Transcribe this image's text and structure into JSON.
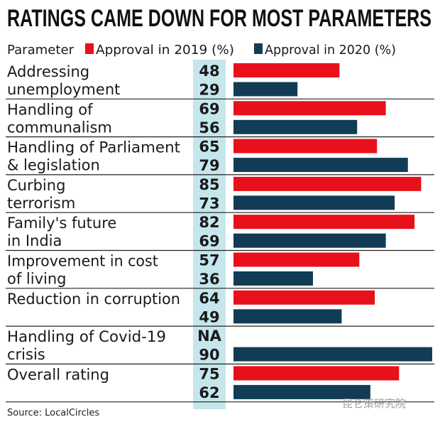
{
  "chart_data": {
    "type": "bar",
    "orientation": "horizontal",
    "title": "RATINGS CAME DOWN FOR MOST PARAMETERS",
    "category_header": "Parameter",
    "categories": [
      [
        "Addressing",
        "unemployment"
      ],
      [
        "Handling of",
        "communalism"
      ],
      [
        "Handling of Parliament",
        "& legislation"
      ],
      [
        "Curbing",
        "terrorism"
      ],
      [
        "Family's future",
        "in India"
      ],
      [
        "Improvement in cost",
        "of living"
      ],
      [
        "Reduction in corruption"
      ],
      [
        "Handling of Covid-19",
        "crisis"
      ],
      [
        "Overall rating"
      ]
    ],
    "series": [
      {
        "name": "Approval in 2019 (%)",
        "color": "#e8101a",
        "values": [
          48,
          69,
          65,
          85,
          82,
          57,
          64,
          null,
          75
        ],
        "labels": [
          "48",
          "69",
          "65",
          "85",
          "82",
          "57",
          "64",
          "NA",
          "75"
        ]
      },
      {
        "name": "Approval in 2020 (%)",
        "color": "#123c55",
        "values": [
          29,
          56,
          79,
          73,
          69,
          36,
          49,
          90,
          62
        ],
        "labels": [
          "29",
          "56",
          "79",
          "73",
          "69",
          "36",
          "49",
          "90",
          "62"
        ]
      }
    ],
    "xlim": [
      0,
      90
    ],
    "value_column_color": "#c5e6ec",
    "legend": "top",
    "grid": false
  },
  "source": "Source: LocalCircles",
  "watermark": "昆仑策研究院"
}
